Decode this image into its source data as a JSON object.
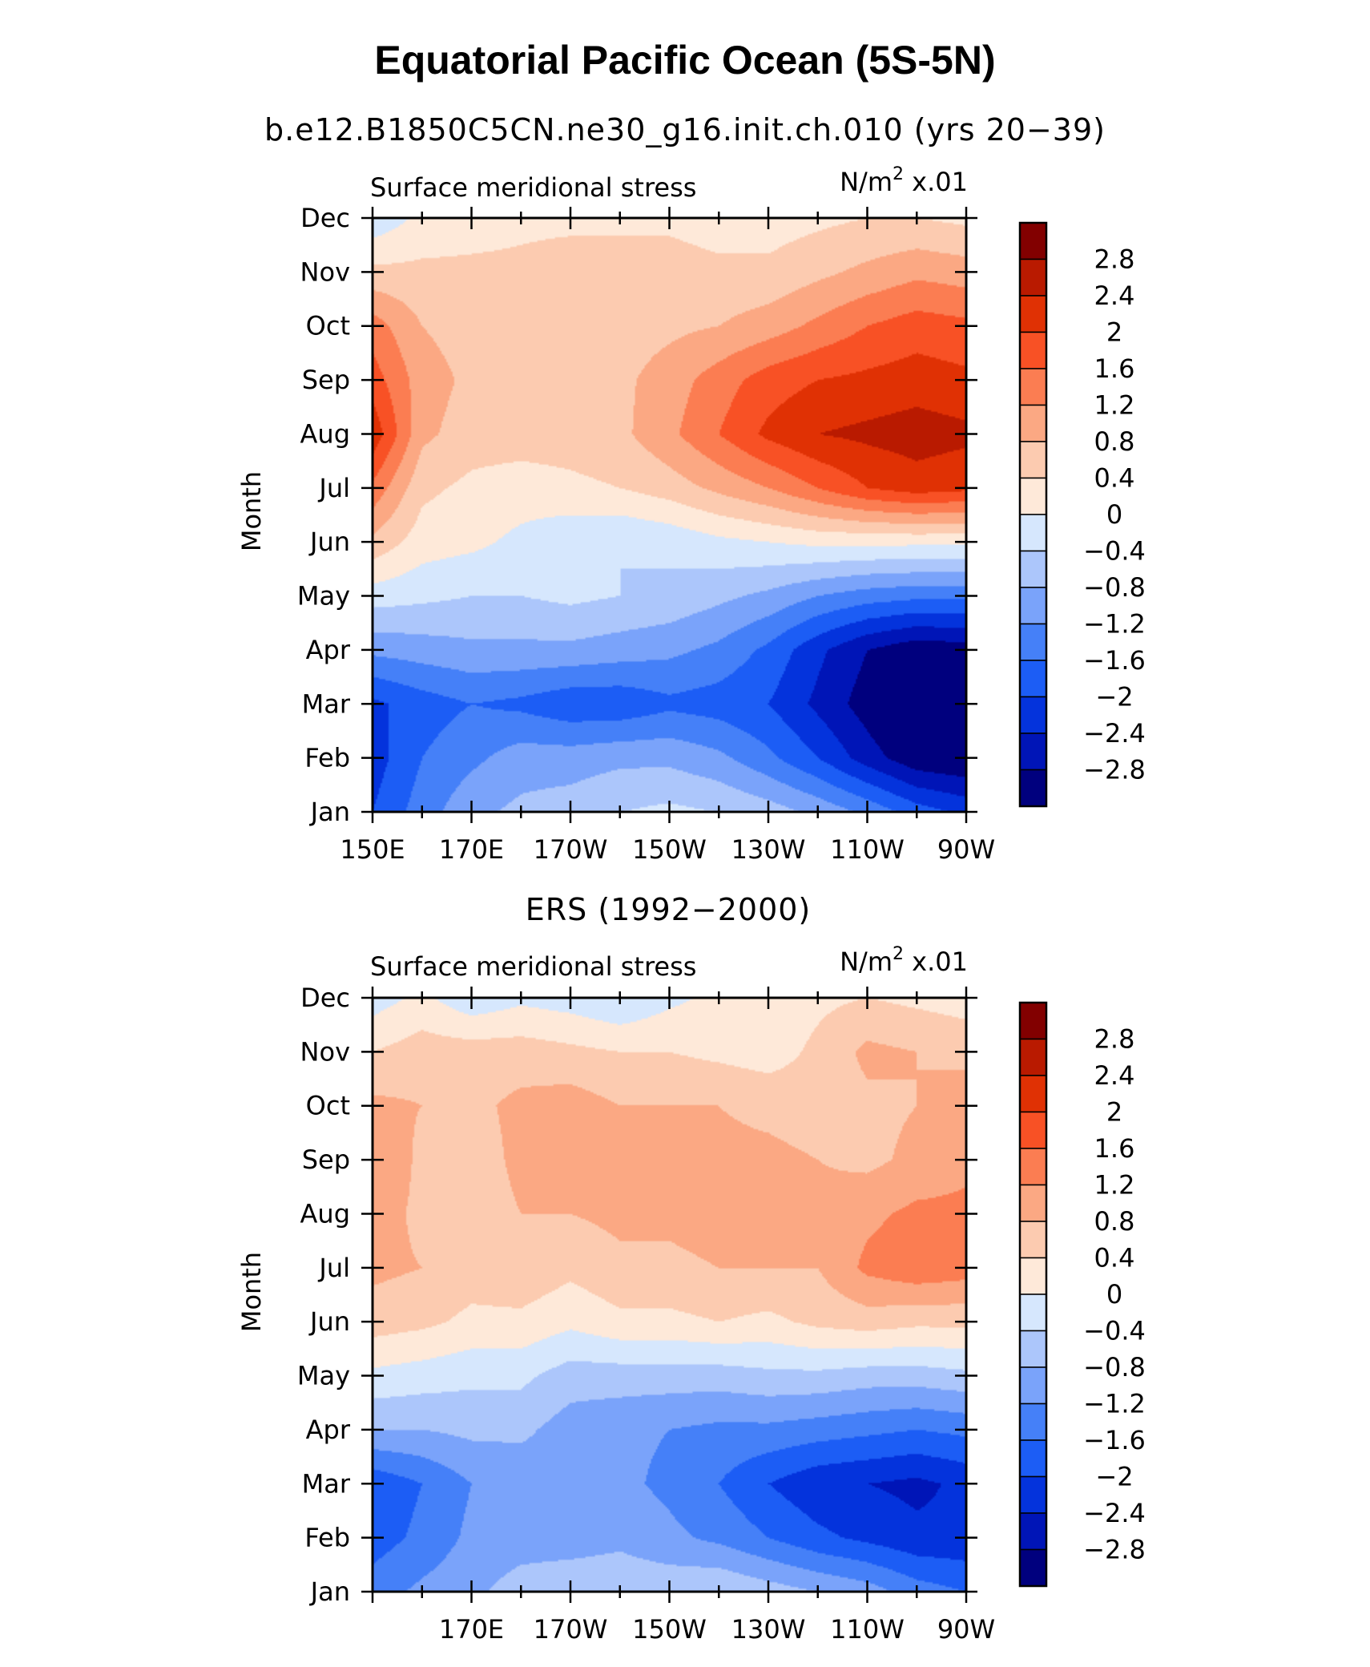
{
  "title": "Equatorial Pacific Ocean (5S-5N)",
  "chart_data": [
    {
      "type": "heatmap",
      "title": "b.e12.B1850C5CN.ne30_g16.init.ch.010 (yrs 20−39)",
      "left_label": "Surface meridional stress",
      "units_base": "N/m",
      "units_exp": "2",
      "units_scale": " x.01",
      "ylabel": "Month",
      "x_ticks": [
        {
          "value": 150,
          "label": "150E"
        },
        {
          "value": 170,
          "label": "170E"
        },
        {
          "value": 190,
          "label": "170W"
        },
        {
          "value": 210,
          "label": "150W"
        },
        {
          "value": 230,
          "label": "130W"
        },
        {
          "value": 250,
          "label": "110W"
        },
        {
          "value": 270,
          "label": "90W"
        }
      ],
      "xlim": [
        150,
        270
      ],
      "y_ticks": [
        "Jan",
        "Feb",
        "Mar",
        "Apr",
        "May",
        "Jun",
        "Jul",
        "Aug",
        "Sep",
        "Oct",
        "Nov",
        "Dec"
      ],
      "x": [
        150,
        160,
        170,
        180,
        190,
        200,
        210,
        220,
        230,
        240,
        250,
        260,
        270
      ],
      "z": [
        [
          -2.0,
          -1.4,
          -0.9,
          -0.7,
          -0.6,
          -0.4,
          -0.3,
          -0.4,
          -0.6,
          -0.9,
          -1.3,
          -1.8,
          -2.1
        ],
        [
          -2.2,
          -1.6,
          -1.3,
          -1.0,
          -1.0,
          -0.9,
          -0.9,
          -1.1,
          -1.5,
          -2.0,
          -2.6,
          -3.1,
          -3.2
        ],
        [
          -2.1,
          -1.8,
          -1.6,
          -1.7,
          -1.9,
          -1.9,
          -1.7,
          -1.8,
          -2.0,
          -2.5,
          -3.0,
          -3.5,
          -3.4
        ],
        [
          -1.1,
          -1.0,
          -0.9,
          -0.9,
          -0.9,
          -1.0,
          -1.1,
          -1.3,
          -1.7,
          -2.3,
          -2.8,
          -3.1,
          -3.0
        ],
        [
          -0.2,
          -0.3,
          -0.4,
          -0.4,
          -0.3,
          -0.4,
          -0.5,
          -0.7,
          -0.9,
          -1.2,
          -1.4,
          -1.5,
          -1.5
        ],
        [
          0.7,
          0.2,
          0.1,
          -0.1,
          -0.3,
          -0.4,
          -0.3,
          -0.1,
          0.0,
          0.1,
          0.1,
          0.1,
          0.1
        ],
        [
          1.5,
          0.5,
          0.3,
          0.2,
          0.3,
          0.4,
          0.6,
          0.9,
          1.2,
          1.6,
          2.0,
          2.2,
          2.1
        ],
        [
          2.3,
          0.9,
          0.6,
          0.6,
          0.6,
          0.7,
          1.1,
          1.6,
          2.1,
          2.4,
          2.5,
          2.6,
          2.5
        ],
        [
          1.8,
          1.0,
          0.7,
          0.6,
          0.6,
          0.7,
          1.0,
          1.4,
          1.8,
          2.0,
          2.1,
          2.2,
          2.1
        ],
        [
          1.4,
          0.8,
          0.6,
          0.6,
          0.6,
          0.6,
          0.7,
          0.8,
          1.0,
          1.3,
          1.6,
          1.8,
          1.7
        ],
        [
          0.5,
          0.5,
          0.5,
          0.5,
          0.6,
          0.6,
          0.6,
          0.5,
          0.5,
          0.7,
          0.9,
          1.1,
          1.0
        ],
        [
          -0.3,
          0.1,
          0.2,
          0.3,
          0.3,
          0.3,
          0.3,
          0.2,
          0.2,
          0.3,
          0.4,
          0.4,
          0.3
        ]
      ]
    },
    {
      "type": "heatmap",
      "title": "ERS (1992−2000)",
      "left_label": "Surface meridional stress",
      "units_base": "N/m",
      "units_exp": "2",
      "units_scale": " x.01",
      "ylabel": "Month",
      "x_ticks": [
        {
          "value": 170,
          "label": "170E"
        },
        {
          "value": 190,
          "label": "170W"
        },
        {
          "value": 210,
          "label": "150W"
        },
        {
          "value": 230,
          "label": "130W"
        },
        {
          "value": 250,
          "label": "110W"
        },
        {
          "value": 270,
          "label": "90W"
        }
      ],
      "xlim": [
        150,
        270
      ],
      "y_ticks": [
        "Jan",
        "Feb",
        "Mar",
        "Apr",
        "May",
        "Jun",
        "Jul",
        "Aug",
        "Sep",
        "Oct",
        "Nov",
        "Dec"
      ],
      "x": [
        150,
        160,
        170,
        180,
        190,
        200,
        210,
        220,
        230,
        240,
        250,
        260,
        270
      ],
      "z": [
        [
          -1.4,
          -1.1,
          -0.9,
          -0.6,
          -0.5,
          -0.5,
          -0.5,
          -0.4,
          -0.6,
          -0.8,
          -1.0,
          -1.4,
          -1.6
        ],
        [
          -1.8,
          -1.5,
          -1.1,
          -1.0,
          -1.0,
          -0.9,
          -1.1,
          -1.3,
          -1.6,
          -1.9,
          -2.1,
          -2.3,
          -2.3
        ],
        [
          -1.9,
          -1.6,
          -1.2,
          -1.1,
          -1.0,
          -1.1,
          -1.3,
          -1.6,
          -2.0,
          -2.3,
          -2.4,
          -2.5,
          -2.3
        ],
        [
          -0.8,
          -0.8,
          -0.7,
          -0.7,
          -1.0,
          -1.1,
          -1.2,
          -1.3,
          -1.3,
          -1.4,
          -1.5,
          -1.6,
          -1.5
        ],
        [
          -0.1,
          -0.2,
          -0.3,
          -0.3,
          -0.6,
          -0.6,
          -0.6,
          -0.6,
          -0.5,
          -0.5,
          -0.6,
          -0.6,
          -0.5
        ],
        [
          0.6,
          0.5,
          0.3,
          0.3,
          0.1,
          0.3,
          0.3,
          0.4,
          0.3,
          0.5,
          0.6,
          0.5,
          0.5
        ],
        [
          0.9,
          0.8,
          0.6,
          0.7,
          0.5,
          0.7,
          0.7,
          0.8,
          0.8,
          0.8,
          1.3,
          1.5,
          1.4
        ],
        [
          1.0,
          0.7,
          0.6,
          0.8,
          0.8,
          0.9,
          0.9,
          1.0,
          0.9,
          0.9,
          1.1,
          1.3,
          1.3
        ],
        [
          1.2,
          0.7,
          0.6,
          0.9,
          0.9,
          0.9,
          1.0,
          0.9,
          0.9,
          0.8,
          0.7,
          0.9,
          1.1
        ],
        [
          0.9,
          0.8,
          0.7,
          0.9,
          1.0,
          0.8,
          0.8,
          0.8,
          0.7,
          0.6,
          0.7,
          0.8,
          1.0
        ],
        [
          0.4,
          0.6,
          0.6,
          0.6,
          0.5,
          0.4,
          0.4,
          0.3,
          0.2,
          0.5,
          0.9,
          0.8,
          0.7
        ],
        [
          -0.2,
          0.1,
          -0.3,
          -0.1,
          -0.2,
          -0.4,
          -0.1,
          0.1,
          0.1,
          0.3,
          0.4,
          0.3,
          0.2
        ]
      ]
    }
  ],
  "colorbar": {
    "labels": [
      "2.8",
      "2.4",
      "2",
      "1.6",
      "1.2",
      "0.8",
      "0.4",
      "0",
      "−0.4",
      "−0.8",
      "−1.2",
      "−1.6",
      "−2",
      "−2.4",
      "−2.8"
    ],
    "levels": [
      -2.8,
      -2.4,
      -2.0,
      -1.6,
      -1.2,
      -0.8,
      -0.4,
      0,
      0.4,
      0.8,
      1.2,
      1.6,
      2.0,
      2.4,
      2.8
    ],
    "colors": [
      "#00007e",
      "#0015b7",
      "#0433dc",
      "#1c5df5",
      "#4580f8",
      "#7aa3fa",
      "#acc6fb",
      "#d6e7fd",
      "#fee9d9",
      "#fccbb0",
      "#fba883",
      "#fb7d52",
      "#f85125",
      "#e03104",
      "#b91a00",
      "#820000"
    ]
  }
}
